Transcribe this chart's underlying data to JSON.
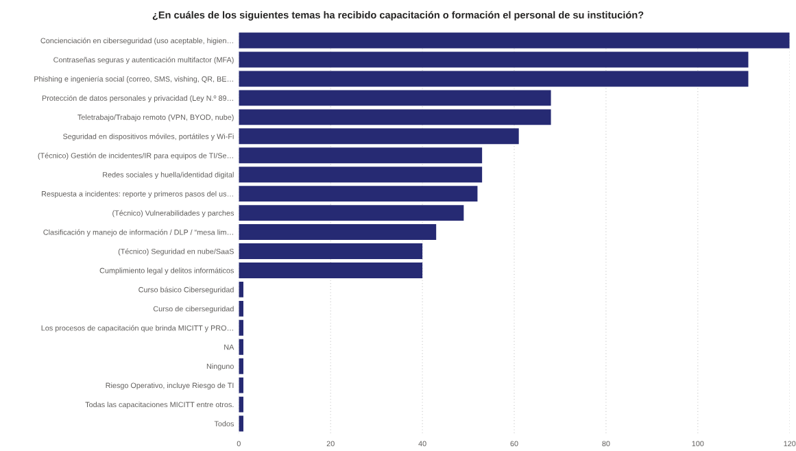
{
  "chart_data": {
    "type": "bar",
    "orientation": "horizontal",
    "title": "¿En cuáles de los siguientes temas ha recibido capacitación o formación el personal de su institución?",
    "categories": [
      "Concienciación en ciberseguridad (uso aceptable, higien…",
      "Contraseñas seguras y autenticación multifactor (MFA)",
      "Phishing e ingeniería social (correo, SMS, vishing, QR, BE…",
      "Protección de datos personales y privacidad (Ley N.º 89…",
      "Teletrabajo/Trabajo remoto (VPN, BYOD, nube)",
      "Seguridad en dispositivos móviles, portátiles y Wi-Fi",
      "(Técnico) Gestión de incidentes/IR para equipos de TI/Se…",
      "Redes sociales y huella/identidad digital",
      "Respuesta a incidentes: reporte y primeros pasos del us…",
      "(Técnico) Vulnerabilidades y parches",
      "Clasificación y manejo de información / DLP / “mesa lim…",
      "(Técnico) Seguridad en nube/SaaS",
      "Cumplimiento legal y delitos informáticos",
      "Curso básico Ciberseguridad",
      "Curso de ciberseguridad",
      "Los procesos de capacitación que brinda MICITT y PRO…",
      "NA",
      "Ninguno",
      "Riesgo Operativo, incluye Riesgo de TI",
      "Todas las capacitaciones MICITT entre otros.",
      "Todos"
    ],
    "values": [
      120,
      111,
      111,
      68,
      68,
      61,
      53,
      53,
      52,
      49,
      43,
      40,
      40,
      1,
      1,
      1,
      1,
      1,
      1,
      1,
      1
    ],
    "color": "#262a73",
    "xlim": [
      0,
      120
    ],
    "xticks": [
      0,
      20,
      40,
      60,
      80,
      100,
      120
    ],
    "grid": "x"
  }
}
